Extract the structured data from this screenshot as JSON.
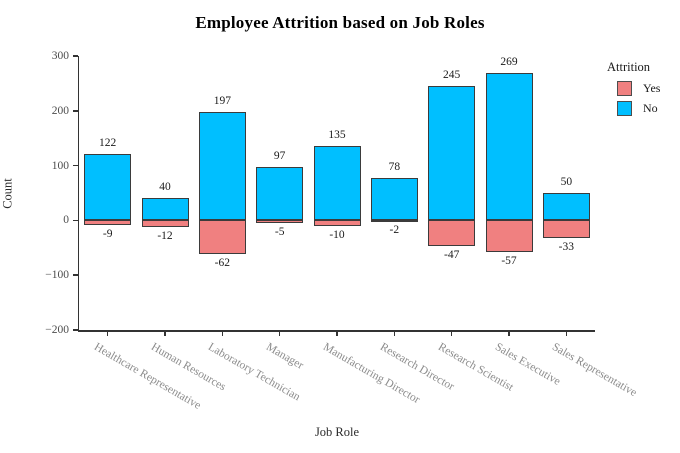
{
  "chart_data": {
    "type": "bar",
    "title": "Employee Attrition based on Job Roles",
    "xlabel": "Job Role",
    "ylabel": "Count",
    "categories": [
      "Healthcare Representative",
      "Human Resources",
      "Laboratory Technician",
      "Manager",
      "Manufacturing Director",
      "Research Director",
      "Research Scientist",
      "Sales Executive",
      "Sales Representative"
    ],
    "series": [
      {
        "name": "Yes",
        "color": "#F08080",
        "values": [
          -9,
          -12,
          -62,
          -5,
          -10,
          -2,
          -47,
          -57,
          -33
        ]
      },
      {
        "name": "No",
        "color": "#00BFFF",
        "values": [
          122,
          40,
          197,
          97,
          135,
          78,
          245,
          269,
          50
        ]
      }
    ],
    "legend": {
      "title": "Attrition",
      "position": "top-right"
    },
    "ylim": [
      -200,
      300
    ],
    "yticks": [
      300,
      200,
      100,
      0,
      -100,
      -200
    ],
    "grid": false,
    "bar_labels": true,
    "bar_outline_color": "#3b3b3b"
  }
}
